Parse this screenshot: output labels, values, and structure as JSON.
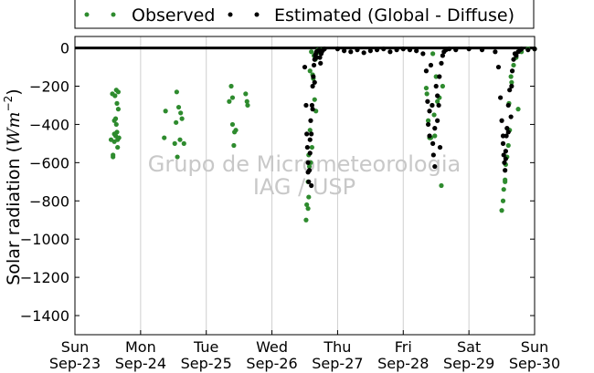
{
  "chart_data": {
    "type": "scatter",
    "ylabel": "Solar radiation (W m^-2)",
    "ylim": [
      -1500,
      60
    ],
    "xlim_days": [
      0,
      7
    ],
    "yticks": [
      0,
      -200,
      -400,
      -600,
      -800,
      -1000,
      -1200,
      -1400
    ],
    "xticks": [
      {
        "day": "Sun",
        "date": "Sep-23"
      },
      {
        "day": "Mon",
        "date": "Sep-24"
      },
      {
        "day": "Tue",
        "date": "Sep-25"
      },
      {
        "day": "Wed",
        "date": "Sep-26"
      },
      {
        "day": "Thu",
        "date": "Sep-27"
      },
      {
        "day": "Fri",
        "date": "Sep-28"
      },
      {
        "day": "Sat",
        "date": "Sep-29"
      },
      {
        "day": "Sun",
        "date": "Sep-30"
      }
    ],
    "grid": "vertical",
    "legend_position": "top",
    "watermark": [
      "Grupo de Micrometeorologia",
      "IAG / USP"
    ],
    "series": [
      {
        "name": "Observed",
        "color": "#2e8b2e",
        "x": [
          0.55,
          0.57,
          0.58,
          0.6,
          0.6,
          0.61,
          0.62,
          0.63,
          0.63,
          0.64,
          0.65,
          0.66,
          0.67,
          0.58,
          0.62,
          0.65,
          0.66,
          0.6,
          0.64,
          1.36,
          1.38,
          1.52,
          1.55,
          1.58,
          1.6,
          1.61,
          1.63,
          1.66,
          1.54,
          1.56,
          2.35,
          2.38,
          2.4,
          2.42,
          2.43,
          2.45,
          2.6,
          2.62,
          2.63,
          2.4,
          3.52,
          3.53,
          3.55,
          3.55,
          3.56,
          3.57,
          3.58,
          3.58,
          3.6,
          3.62,
          3.63,
          3.64,
          3.65,
          3.67,
          3.68,
          3.7,
          3.72,
          3.75,
          3.56,
          3.59,
          3.61,
          3.66,
          3.69,
          5.35,
          5.36,
          5.38,
          5.4,
          5.42,
          5.45,
          5.48,
          5.5,
          5.52,
          5.55,
          5.58,
          5.6,
          5.44,
          5.47,
          6.5,
          6.52,
          6.53,
          6.55,
          6.56,
          6.58,
          6.6,
          6.62,
          6.65,
          6.68,
          6.72,
          6.75,
          6.8,
          6.55,
          6.61,
          6.64,
          6.9,
          7.0
        ],
        "y": [
          -480,
          -240,
          -560,
          -450,
          -380,
          -250,
          -460,
          -400,
          -220,
          -440,
          -480,
          -320,
          -470,
          -570,
          -370,
          -520,
          -230,
          -490,
          -290,
          -470,
          -330,
          -500,
          -230,
          -310,
          -480,
          -340,
          -370,
          -500,
          -390,
          -570,
          -280,
          -200,
          -400,
          -510,
          -440,
          -430,
          -240,
          -280,
          -300,
          -260,
          -900,
          -820,
          -840,
          -700,
          -560,
          -620,
          -120,
          -430,
          -20,
          -140,
          -160,
          -40,
          -270,
          -330,
          -20,
          -10,
          -10,
          -10,
          -780,
          -600,
          -520,
          -60,
          -25,
          -210,
          -240,
          -380,
          -470,
          -470,
          -30,
          -460,
          -150,
          -280,
          -260,
          -720,
          -200,
          -300,
          -350,
          -850,
          -800,
          -740,
          -700,
          -610,
          -570,
          -510,
          -430,
          -180,
          -90,
          -50,
          -320,
          -20,
          -690,
          -290,
          -150,
          -5,
          -5
        ]
      },
      {
        "name": "Estimated (Global - Diffuse)",
        "color": "#000000",
        "x": [
          3.5,
          3.52,
          3.53,
          3.54,
          3.55,
          3.56,
          3.57,
          3.58,
          3.59,
          3.6,
          3.61,
          3.62,
          3.63,
          3.64,
          3.65,
          3.66,
          3.67,
          3.68,
          3.7,
          3.72,
          3.73,
          3.74,
          3.75,
          3.76,
          3.78,
          3.8,
          3.55,
          3.58,
          3.6,
          3.62,
          3.65,
          3.68,
          4.0,
          4.1,
          4.2,
          4.3,
          4.4,
          4.5,
          4.6,
          4.7,
          4.8,
          4.9,
          5.0,
          5.1,
          5.2,
          5.3,
          5.35,
          5.37,
          5.38,
          5.4,
          5.42,
          5.44,
          5.45,
          5.46,
          5.48,
          5.5,
          5.52,
          5.54,
          5.55,
          5.56,
          5.58,
          5.6,
          5.62,
          5.65,
          5.7,
          5.4,
          5.48,
          5.52,
          5.8,
          6.0,
          6.2,
          6.4,
          6.45,
          6.48,
          6.5,
          6.52,
          6.53,
          6.54,
          6.55,
          6.56,
          6.57,
          6.58,
          6.6,
          6.62,
          6.64,
          6.65,
          6.66,
          6.68,
          6.7,
          6.72,
          6.75,
          6.78,
          6.8,
          6.52,
          6.56,
          6.6,
          6.9,
          7.0
        ],
        "y": [
          -100,
          -300,
          -450,
          -520,
          -600,
          -700,
          -640,
          -480,
          -380,
          -720,
          -300,
          -200,
          -150,
          -90,
          -60,
          -40,
          -30,
          -20,
          -15,
          -10,
          -50,
          -80,
          -30,
          -20,
          -10,
          -5,
          -650,
          -550,
          -450,
          -320,
          -180,
          -50,
          -5,
          -15,
          -20,
          -10,
          -25,
          -15,
          -10,
          -5,
          -20,
          -10,
          -5,
          -10,
          -15,
          -30,
          -120,
          -280,
          -400,
          -460,
          -90,
          -300,
          -500,
          -560,
          -420,
          -200,
          -380,
          -300,
          -150,
          -520,
          -80,
          -40,
          -20,
          -10,
          -5,
          -330,
          -620,
          -250,
          -10,
          -5,
          -10,
          -20,
          -100,
          -260,
          -380,
          -460,
          -560,
          -600,
          -640,
          -540,
          -460,
          -420,
          -300,
          -220,
          -360,
          -200,
          -120,
          -60,
          -30,
          -40,
          -20,
          -10,
          -5,
          -500,
          -580,
          -440,
          -10,
          -5
        ]
      }
    ]
  }
}
